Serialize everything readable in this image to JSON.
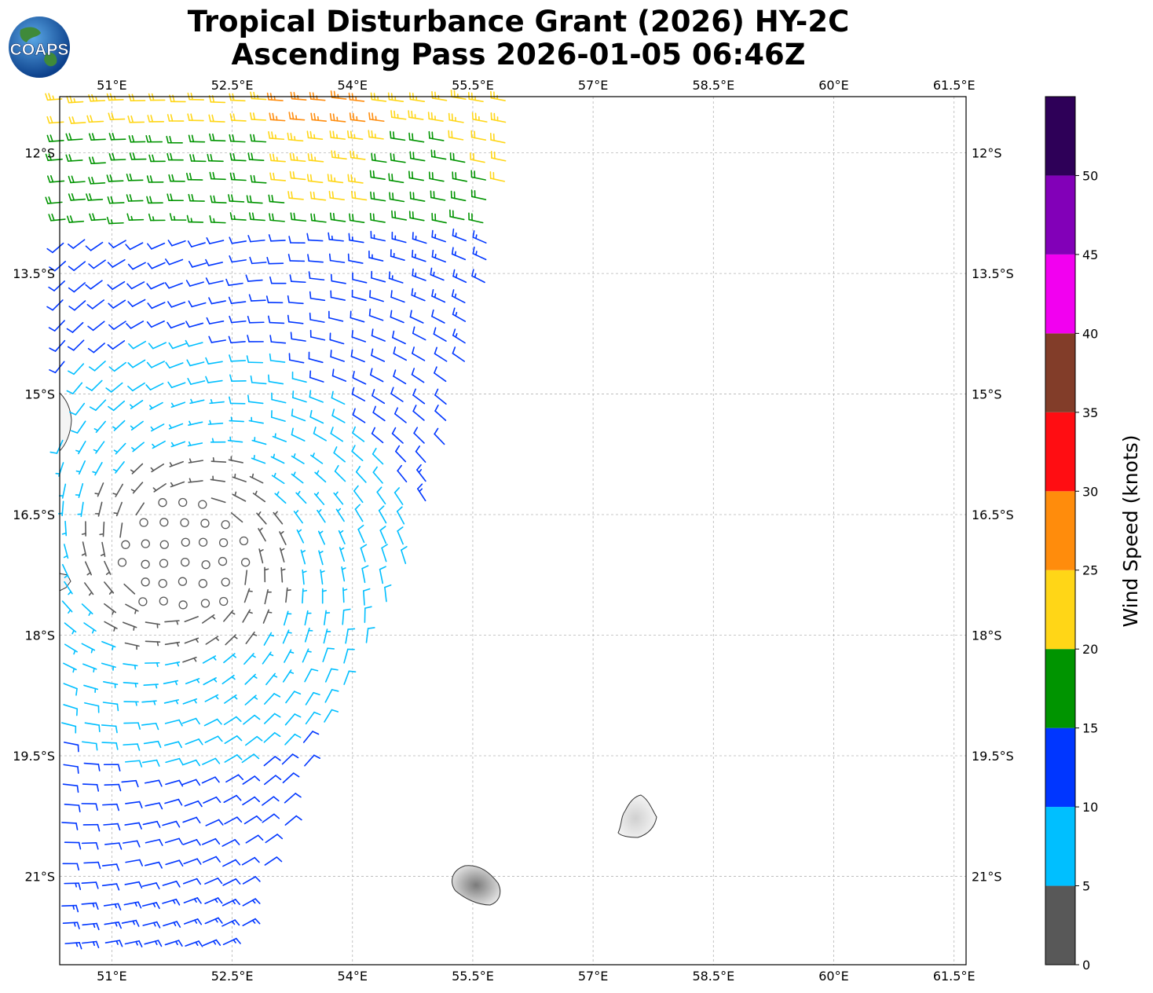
{
  "title": {
    "line1": "Tropical Disturbance Grant (2026) HY-2C",
    "line2": "Ascending Pass 2026-01-05 06:46Z"
  },
  "logo": {
    "text": "COAPS",
    "icon": "globe-logo-icon"
  },
  "map": {
    "lon_range": [
      50.35,
      61.65
    ],
    "lat_range": [
      -22.1,
      -11.3
    ],
    "lon_ticks": [
      "51°E",
      "52.5°E",
      "54°E",
      "55.5°E",
      "57°E",
      "58.5°E",
      "60°E",
      "61.5°E"
    ],
    "lon_tick_values": [
      51,
      52.5,
      54,
      55.5,
      57,
      58.5,
      60,
      61.5
    ],
    "lat_ticks": [
      "12°S",
      "13.5°S",
      "15°S",
      "16.5°S",
      "18°S",
      "19.5°S",
      "21°S"
    ],
    "lat_tick_values": [
      -12,
      -13.5,
      -15,
      -16.5,
      -18,
      -19.5,
      -21
    ],
    "gridlines": true,
    "land": [
      "Madagascar coast",
      "Mauritius",
      "Réunion"
    ]
  },
  "colorbar": {
    "label": "Wind Speed (knots)",
    "ticks": [
      "0",
      "5",
      "10",
      "15",
      "20",
      "25",
      "30",
      "35",
      "40",
      "45",
      "50"
    ],
    "bins": [
      {
        "range": [
          0,
          5
        ],
        "color": "#585858"
      },
      {
        "range": [
          5,
          10
        ],
        "color": "#00bfff"
      },
      {
        "range": [
          10,
          15
        ],
        "color": "#0036ff"
      },
      {
        "range": [
          15,
          20
        ],
        "color": "#009400"
      },
      {
        "range": [
          20,
          25
        ],
        "color": "#ffd617"
      },
      {
        "range": [
          25,
          30
        ],
        "color": "#ff8c0c"
      },
      {
        "range": [
          30,
          35
        ],
        "color": "#ff0d12"
      },
      {
        "range": [
          35,
          40
        ],
        "color": "#823d29"
      },
      {
        "range": [
          40,
          45
        ],
        "color": "#f200f0"
      },
      {
        "range": [
          45,
          50
        ],
        "color": "#8200b8"
      },
      {
        "range": [
          50,
          55
        ],
        "color": "#2e0058"
      }
    ]
  },
  "wind_field": {
    "center": {
      "lon": 51.9,
      "lat": -17.0
    },
    "swath_east_edge": [
      [
        -11.3,
        56.1
      ],
      [
        -13.5,
        55.7
      ],
      [
        -16.0,
        55.1
      ],
      [
        -18.0,
        54.3
      ],
      [
        -20.0,
        53.3
      ],
      [
        -22.1,
        52.5
      ]
    ],
    "max_wind_knots": 27
  }
}
